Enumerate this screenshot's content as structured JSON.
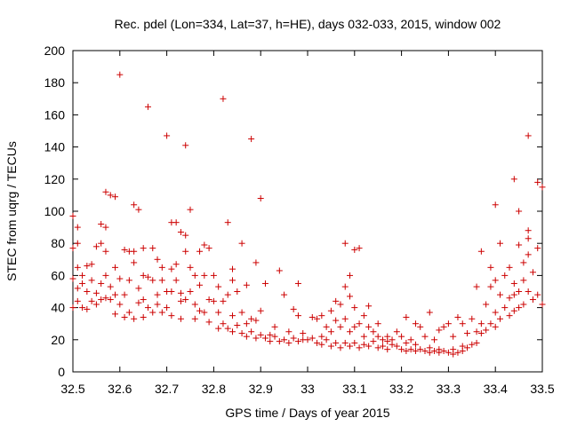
{
  "chart_data": {
    "type": "scatter",
    "title": "Rec. pdel (Lon=334, Lat=37, h=HE), days 032-033, 2015, window 002",
    "xlabel": "GPS time / Days of year 2015",
    "ylabel": "STEC from uqrg / TECUs",
    "xlim": [
      32.5,
      33.5
    ],
    "ylim": [
      0,
      200
    ],
    "xticks": [
      32.5,
      32.6,
      32.7,
      32.8,
      32.9,
      33,
      33.1,
      33.2,
      33.3,
      33.4,
      33.5
    ],
    "xtick_labels": [
      "32.5",
      "32.6",
      "32.7",
      "32.8",
      "32.9",
      "33",
      "33.1",
      "33.2",
      "33.3",
      "33.4",
      "33.5"
    ],
    "yticks": [
      0,
      20,
      40,
      60,
      80,
      100,
      120,
      140,
      160,
      180,
      200
    ],
    "ytick_labels": [
      "0",
      "20",
      "40",
      "60",
      "80",
      "100",
      "120",
      "140",
      "160",
      "180",
      "200"
    ],
    "marker": "+",
    "color": "#cc0000",
    "series": [
      {
        "name": "STEC",
        "points": [
          [
            32.5,
            97
          ],
          [
            32.5,
            77
          ],
          [
            32.5,
            58
          ],
          [
            32.5,
            40
          ],
          [
            32.51,
            90
          ],
          [
            32.51,
            80
          ],
          [
            32.51,
            65
          ],
          [
            32.51,
            52
          ],
          [
            32.51,
            44
          ],
          [
            32.52,
            60
          ],
          [
            32.52,
            55
          ],
          [
            32.52,
            40
          ],
          [
            32.53,
            66
          ],
          [
            32.53,
            50
          ],
          [
            32.53,
            39
          ],
          [
            32.54,
            67
          ],
          [
            32.54,
            57
          ],
          [
            32.54,
            44
          ],
          [
            32.55,
            78
          ],
          [
            32.55,
            49
          ],
          [
            32.55,
            42
          ],
          [
            32.56,
            92
          ],
          [
            32.56,
            80
          ],
          [
            32.56,
            55
          ],
          [
            32.56,
            45
          ],
          [
            32.57,
            112
          ],
          [
            32.57,
            90
          ],
          [
            32.57,
            75
          ],
          [
            32.57,
            60
          ],
          [
            32.57,
            46
          ],
          [
            32.58,
            110
          ],
          [
            32.58,
            53
          ],
          [
            32.58,
            45
          ],
          [
            32.59,
            109
          ],
          [
            32.59,
            65
          ],
          [
            32.59,
            48
          ],
          [
            32.59,
            36
          ],
          [
            32.6,
            185
          ],
          [
            32.6,
            58
          ],
          [
            32.6,
            42
          ],
          [
            32.61,
            76
          ],
          [
            32.61,
            48
          ],
          [
            32.61,
            34
          ],
          [
            32.62,
            75
          ],
          [
            32.62,
            57
          ],
          [
            32.62,
            37
          ],
          [
            32.63,
            104
          ],
          [
            32.63,
            75
          ],
          [
            32.63,
            68
          ],
          [
            32.63,
            33
          ],
          [
            32.64,
            101
          ],
          [
            32.64,
            52
          ],
          [
            32.64,
            43
          ],
          [
            32.65,
            77
          ],
          [
            32.65,
            60
          ],
          [
            32.65,
            45
          ],
          [
            32.65,
            34
          ],
          [
            32.66,
            165
          ],
          [
            32.66,
            59
          ],
          [
            32.66,
            40
          ],
          [
            32.67,
            77
          ],
          [
            32.67,
            57
          ],
          [
            32.67,
            37
          ],
          [
            32.68,
            70
          ],
          [
            32.68,
            48
          ],
          [
            32.68,
            42
          ],
          [
            32.69,
            65
          ],
          [
            32.69,
            57
          ],
          [
            32.69,
            37
          ],
          [
            32.7,
            147
          ],
          [
            32.7,
            50
          ],
          [
            32.7,
            40
          ],
          [
            32.71,
            93
          ],
          [
            32.71,
            64
          ],
          [
            32.71,
            50
          ],
          [
            32.71,
            35
          ],
          [
            32.72,
            93
          ],
          [
            32.72,
            67
          ],
          [
            32.72,
            57
          ],
          [
            32.73,
            87
          ],
          [
            32.73,
            49
          ],
          [
            32.73,
            44
          ],
          [
            32.73,
            33
          ],
          [
            32.74,
            141
          ],
          [
            32.74,
            85
          ],
          [
            32.74,
            75
          ],
          [
            32.74,
            45
          ],
          [
            32.75,
            101
          ],
          [
            32.75,
            65
          ],
          [
            32.75,
            50
          ],
          [
            32.76,
            60
          ],
          [
            32.76,
            42
          ],
          [
            32.76,
            33
          ],
          [
            32.77,
            75
          ],
          [
            32.77,
            54
          ],
          [
            32.77,
            38
          ],
          [
            32.78,
            79
          ],
          [
            32.78,
            60
          ],
          [
            32.78,
            37
          ],
          [
            32.79,
            77
          ],
          [
            32.79,
            45
          ],
          [
            32.79,
            31
          ],
          [
            32.8,
            60
          ],
          [
            32.8,
            44
          ],
          [
            32.81,
            53
          ],
          [
            32.81,
            37
          ],
          [
            32.81,
            27
          ],
          [
            32.82,
            170
          ],
          [
            32.82,
            44
          ],
          [
            32.82,
            30
          ],
          [
            32.83,
            93
          ],
          [
            32.83,
            48
          ],
          [
            32.83,
            27
          ],
          [
            32.84,
            64
          ],
          [
            32.84,
            57
          ],
          [
            32.84,
            35
          ],
          [
            32.84,
            25
          ],
          [
            32.85,
            50
          ],
          [
            32.85,
            29
          ],
          [
            32.86,
            80
          ],
          [
            32.86,
            37
          ],
          [
            32.86,
            24
          ],
          [
            32.87,
            54
          ],
          [
            32.87,
            30
          ],
          [
            32.87,
            22
          ],
          [
            32.88,
            145
          ],
          [
            32.88,
            33
          ],
          [
            32.88,
            25
          ],
          [
            32.89,
            68
          ],
          [
            32.89,
            32
          ],
          [
            32.89,
            21
          ],
          [
            32.9,
            108
          ],
          [
            32.9,
            38
          ],
          [
            32.9,
            23
          ],
          [
            32.91,
            55
          ],
          [
            32.91,
            21
          ],
          [
            32.92,
            23
          ],
          [
            32.92,
            19
          ],
          [
            32.93,
            28
          ],
          [
            32.93,
            22
          ],
          [
            32.94,
            63
          ],
          [
            32.94,
            19
          ],
          [
            32.95,
            48
          ],
          [
            32.95,
            20
          ],
          [
            32.96,
            25
          ],
          [
            32.96,
            18
          ],
          [
            32.97,
            39
          ],
          [
            32.97,
            21
          ],
          [
            32.98,
            55
          ],
          [
            32.98,
            35
          ],
          [
            32.98,
            19
          ],
          [
            32.99,
            24
          ],
          [
            32.99,
            20
          ],
          [
            33.0,
            20
          ],
          [
            33.01,
            34
          ],
          [
            33.01,
            21
          ],
          [
            33.02,
            33
          ],
          [
            33.02,
            18
          ],
          [
            33.03,
            35
          ],
          [
            33.03,
            22
          ],
          [
            33.03,
            17
          ],
          [
            33.04,
            28
          ],
          [
            33.04,
            20
          ],
          [
            33.05,
            38
          ],
          [
            33.05,
            25
          ],
          [
            33.05,
            16
          ],
          [
            33.06,
            44
          ],
          [
            33.06,
            32
          ],
          [
            33.06,
            18
          ],
          [
            33.07,
            42
          ],
          [
            33.07,
            28
          ],
          [
            33.07,
            15
          ],
          [
            33.08,
            80
          ],
          [
            33.08,
            53
          ],
          [
            33.08,
            33
          ],
          [
            33.08,
            18
          ],
          [
            33.09,
            60
          ],
          [
            33.09,
            47
          ],
          [
            33.09,
            25
          ],
          [
            33.09,
            16
          ],
          [
            33.1,
            76
          ],
          [
            33.1,
            40
          ],
          [
            33.1,
            28
          ],
          [
            33.1,
            18
          ],
          [
            33.11,
            77
          ],
          [
            33.11,
            30
          ],
          [
            33.11,
            15
          ],
          [
            33.12,
            35
          ],
          [
            33.12,
            22
          ],
          [
            33.12,
            17
          ],
          [
            33.13,
            41
          ],
          [
            33.13,
            28
          ],
          [
            33.13,
            16
          ],
          [
            33.14,
            25
          ],
          [
            33.14,
            19
          ],
          [
            33.15,
            30
          ],
          [
            33.15,
            22
          ],
          [
            33.15,
            15
          ],
          [
            33.16,
            20
          ],
          [
            33.16,
            16
          ],
          [
            33.17,
            22
          ],
          [
            33.17,
            19
          ],
          [
            33.17,
            14
          ],
          [
            33.18,
            20
          ],
          [
            33.18,
            17
          ],
          [
            33.19,
            25
          ],
          [
            33.19,
            16
          ],
          [
            33.2,
            22
          ],
          [
            33.2,
            14
          ],
          [
            33.21,
            34
          ],
          [
            33.21,
            18
          ],
          [
            33.21,
            13
          ],
          [
            33.22,
            20
          ],
          [
            33.22,
            14
          ],
          [
            33.23,
            30
          ],
          [
            33.23,
            17
          ],
          [
            33.23,
            13
          ],
          [
            33.24,
            28
          ],
          [
            33.24,
            14
          ],
          [
            33.25,
            22
          ],
          [
            33.25,
            13
          ],
          [
            33.26,
            37
          ],
          [
            33.26,
            15
          ],
          [
            33.26,
            12
          ],
          [
            33.27,
            20
          ],
          [
            33.27,
            13
          ],
          [
            33.28,
            26
          ],
          [
            33.28,
            14
          ],
          [
            33.28,
            12
          ],
          [
            33.29,
            28
          ],
          [
            33.29,
            13
          ],
          [
            33.3,
            30
          ],
          [
            33.3,
            12
          ],
          [
            33.31,
            22
          ],
          [
            33.31,
            14
          ],
          [
            33.31,
            11
          ],
          [
            33.32,
            34
          ],
          [
            33.32,
            12
          ],
          [
            33.33,
            30
          ],
          [
            33.33,
            16
          ],
          [
            33.33,
            13
          ],
          [
            33.34,
            24
          ],
          [
            33.34,
            15
          ],
          [
            33.35,
            33
          ],
          [
            33.35,
            17
          ],
          [
            33.36,
            53
          ],
          [
            33.36,
            25
          ],
          [
            33.36,
            18
          ],
          [
            33.37,
            75
          ],
          [
            33.37,
            30
          ],
          [
            33.37,
            24
          ],
          [
            33.38,
            42
          ],
          [
            33.38,
            26
          ],
          [
            33.39,
            65
          ],
          [
            33.39,
            53
          ],
          [
            33.39,
            30
          ],
          [
            33.4,
            104
          ],
          [
            33.4,
            57
          ],
          [
            33.4,
            37
          ],
          [
            33.4,
            28
          ],
          [
            33.41,
            80
          ],
          [
            33.41,
            48
          ],
          [
            33.41,
            33
          ],
          [
            33.42,
            60
          ],
          [
            33.42,
            40
          ],
          [
            33.43,
            65
          ],
          [
            33.43,
            46
          ],
          [
            33.43,
            35
          ],
          [
            33.44,
            120
          ],
          [
            33.44,
            55
          ],
          [
            33.44,
            48
          ],
          [
            33.44,
            38
          ],
          [
            33.45,
            100
          ],
          [
            33.45,
            79
          ],
          [
            33.45,
            50
          ],
          [
            33.45,
            40
          ],
          [
            33.46,
            68
          ],
          [
            33.46,
            57
          ],
          [
            33.46,
            42
          ],
          [
            33.47,
            147
          ],
          [
            33.47,
            88
          ],
          [
            33.47,
            83
          ],
          [
            33.47,
            73
          ],
          [
            33.47,
            50
          ],
          [
            33.48,
            62
          ],
          [
            33.48,
            45
          ],
          [
            33.49,
            118
          ],
          [
            33.49,
            77
          ],
          [
            33.49,
            48
          ],
          [
            33.5,
            115
          ],
          [
            33.5,
            42
          ]
        ]
      }
    ]
  }
}
